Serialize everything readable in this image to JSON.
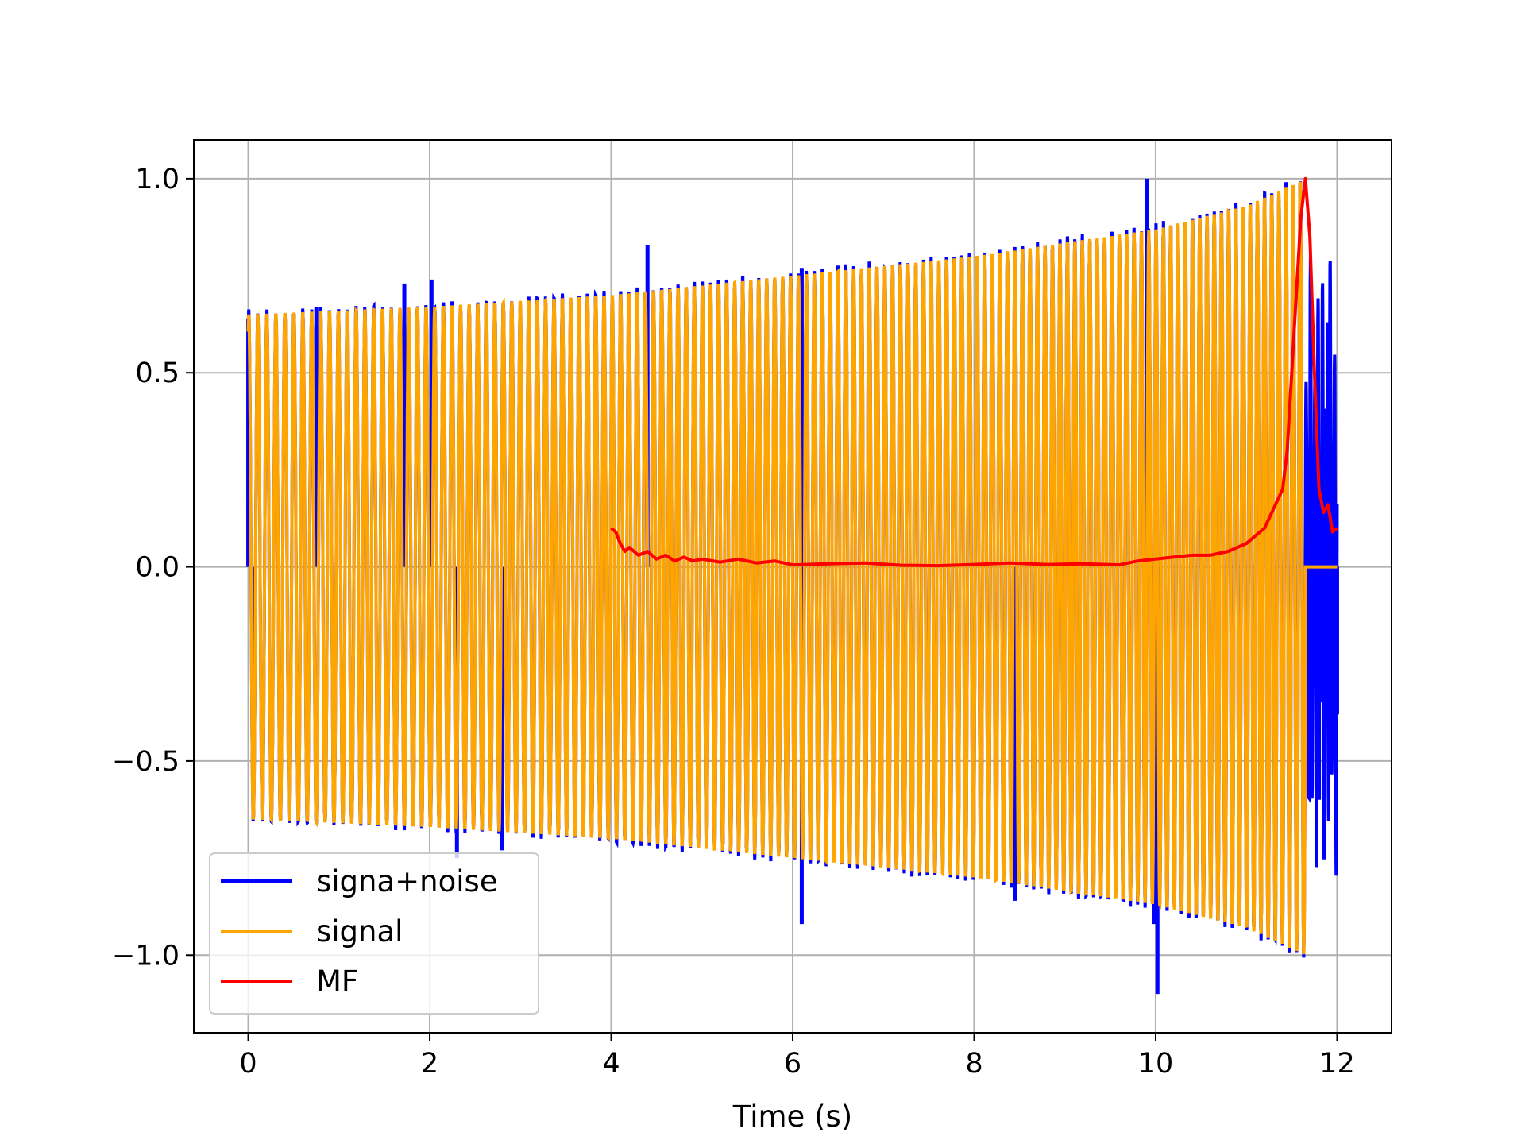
{
  "chart_data": {
    "type": "line",
    "title": "",
    "xlabel": "Time (s)",
    "ylabel": "",
    "xlim": [
      -0.6,
      12.6
    ],
    "ylim": [
      -1.2,
      1.1
    ],
    "xticks": [
      0,
      2,
      4,
      6,
      8,
      10,
      12
    ],
    "xtick_labels": [
      "0",
      "2",
      "4",
      "6",
      "8",
      "10",
      "12"
    ],
    "yticks": [
      -1.0,
      -0.5,
      0.0,
      0.5,
      1.0
    ],
    "ytick_labels": [
      "−1.0",
      "−0.5",
      "0.0",
      "0.5",
      "1.0"
    ],
    "grid": true,
    "legend_position": "bottom-left",
    "series": [
      {
        "name": "signa+noise",
        "color": "#0000ff",
        "description_points": {
          "x": [
            0.0,
            0.05,
            0.75,
            1.72,
            2.02,
            2.3,
            2.8,
            4.4,
            6.1,
            6.1,
            8.45,
            9.9,
            9.98,
            10.02,
            11.8,
            11.9,
            12.0
          ],
          "y": [
            0.64,
            -0.4,
            0.67,
            0.73,
            0.74,
            -0.75,
            -0.73,
            0.83,
            0.77,
            -0.92,
            -0.86,
            1.0,
            -0.92,
            -1.1,
            -0.6,
            0.63,
            -0.38
          ]
        }
      },
      {
        "name": "signal",
        "color": "#ffa500",
        "envelope": {
          "x": [
            0.0,
            2.0,
            4.0,
            6.0,
            8.0,
            10.0,
            11.0,
            11.65
          ],
          "amplitude": [
            0.65,
            0.67,
            0.7,
            0.75,
            0.8,
            0.87,
            0.93,
            1.0
          ]
        }
      },
      {
        "name": "MF",
        "color": "#ff0000",
        "x": [
          4.0,
          4.05,
          4.1,
          4.15,
          4.2,
          4.3,
          4.4,
          4.5,
          4.6,
          4.7,
          4.8,
          4.9,
          5.0,
          5.2,
          5.4,
          5.6,
          5.8,
          6.0,
          6.4,
          6.8,
          7.2,
          7.6,
          8.0,
          8.4,
          8.8,
          9.2,
          9.6,
          9.8,
          10.0,
          10.2,
          10.4,
          10.6,
          10.8,
          11.0,
          11.1,
          11.2,
          11.3,
          11.4,
          11.45,
          11.5,
          11.55,
          11.6,
          11.65,
          11.7,
          11.75,
          11.8,
          11.85,
          11.9,
          11.95,
          12.0
        ],
        "y": [
          0.1,
          0.09,
          0.06,
          0.04,
          0.05,
          0.03,
          0.04,
          0.02,
          0.03,
          0.015,
          0.025,
          0.015,
          0.02,
          0.012,
          0.02,
          0.01,
          0.015,
          0.005,
          0.008,
          0.01,
          0.004,
          0.003,
          0.006,
          0.01,
          0.006,
          0.008,
          0.005,
          0.015,
          0.02,
          0.025,
          0.03,
          0.03,
          0.04,
          0.06,
          0.08,
          0.1,
          0.15,
          0.2,
          0.3,
          0.5,
          0.7,
          0.9,
          1.0,
          0.85,
          0.5,
          0.2,
          0.14,
          0.16,
          0.09,
          0.1
        ]
      }
    ]
  }
}
